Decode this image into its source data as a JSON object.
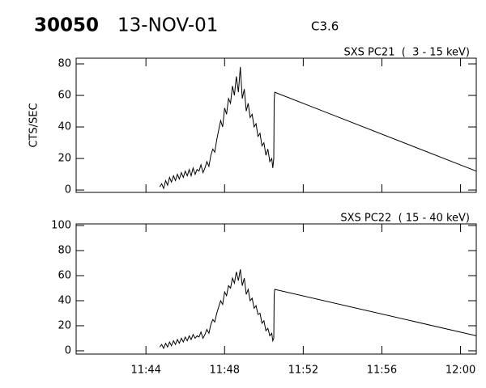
{
  "header": {
    "id": "30050",
    "date": "13-NOV-01",
    "class": "C3.6"
  },
  "chart_data": [
    {
      "type": "line",
      "title": "SXS PC21  (  3 - 15 keV)",
      "y_label": "CTS/SEC",
      "color": "#000000",
      "x": [
        704.7,
        704.8,
        704.9,
        705.0,
        705.1,
        705.2,
        705.3,
        705.4,
        705.5,
        705.6,
        705.7,
        705.8,
        705.9,
        706.0,
        706.1,
        706.2,
        706.3,
        706.4,
        706.5,
        706.6,
        706.7,
        706.8,
        706.9,
        707.0,
        707.1,
        707.2,
        707.3,
        707.4,
        707.5,
        707.6,
        707.7,
        707.8,
        707.9,
        708.0,
        708.1,
        708.2,
        708.3,
        708.4,
        708.5,
        708.6,
        708.7,
        708.8,
        708.9,
        709.0,
        709.1,
        709.2,
        709.3,
        709.4,
        709.5,
        709.6,
        709.7,
        709.8,
        709.9,
        710.0,
        710.1,
        710.2,
        710.3,
        710.4,
        710.45,
        710.5,
        710.52,
        710.55,
        720.8
      ],
      "values": [
        2,
        4,
        1,
        6,
        3,
        8,
        5,
        9,
        6,
        10,
        7,
        11,
        8,
        12,
        9,
        13,
        9,
        14,
        10,
        13,
        12,
        16,
        11,
        14,
        18,
        15,
        22,
        26,
        24,
        32,
        38,
        44,
        40,
        52,
        48,
        58,
        55,
        66,
        60,
        72,
        62,
        78,
        58,
        64,
        50,
        55,
        46,
        48,
        40,
        42,
        34,
        36,
        28,
        30,
        22,
        26,
        18,
        20,
        14,
        20,
        57,
        62,
        12
      ],
      "xlim": [
        700.45,
        720.8
      ],
      "xticks": [
        704,
        708,
        712,
        716,
        720
      ],
      "ylim": [
        -1.5,
        83.6
      ],
      "yticks": [
        0,
        20,
        40,
        60,
        80
      ]
    },
    {
      "type": "line",
      "title": "SXS PC22  ( 15 - 40 keV)",
      "color": "#000000",
      "x": [
        704.7,
        704.8,
        704.9,
        705.0,
        705.1,
        705.2,
        705.3,
        705.4,
        705.5,
        705.6,
        705.7,
        705.8,
        705.9,
        706.0,
        706.1,
        706.2,
        706.3,
        706.4,
        706.5,
        706.6,
        706.7,
        706.8,
        706.9,
        707.0,
        707.1,
        707.2,
        707.3,
        707.4,
        707.5,
        707.6,
        707.7,
        707.8,
        707.9,
        708.0,
        708.1,
        708.2,
        708.3,
        708.4,
        708.5,
        708.6,
        708.7,
        708.8,
        708.9,
        709.0,
        709.1,
        709.2,
        709.3,
        709.4,
        709.5,
        709.6,
        709.7,
        709.8,
        709.9,
        710.0,
        710.1,
        710.2,
        710.3,
        710.4,
        710.45,
        710.5,
        710.52,
        710.55,
        720.8
      ],
      "values": [
        3,
        5,
        2,
        6,
        3,
        7,
        4,
        8,
        5,
        9,
        6,
        10,
        7,
        11,
        8,
        12,
        9,
        13,
        10,
        12,
        11,
        15,
        10,
        13,
        17,
        14,
        21,
        25,
        23,
        30,
        35,
        40,
        37,
        47,
        44,
        52,
        50,
        58,
        54,
        63,
        56,
        65,
        52,
        58,
        45,
        49,
        40,
        42,
        34,
        36,
        29,
        30,
        22,
        24,
        16,
        18,
        12,
        14,
        8,
        10,
        45,
        49,
        12
      ],
      "xlim": [
        700.45,
        720.8
      ],
      "xticks": [
        {
          "value": 704,
          "label": "11:44"
        },
        {
          "value": 708,
          "label": "11:48"
        },
        {
          "value": 712,
          "label": "11:52"
        },
        {
          "value": 716,
          "label": "11:56"
        },
        {
          "value": 720,
          "label": "12:00"
        }
      ],
      "ylim": [
        -2.6,
        101.3
      ],
      "yticks": [
        0,
        20,
        40,
        60,
        80,
        100
      ]
    }
  ]
}
